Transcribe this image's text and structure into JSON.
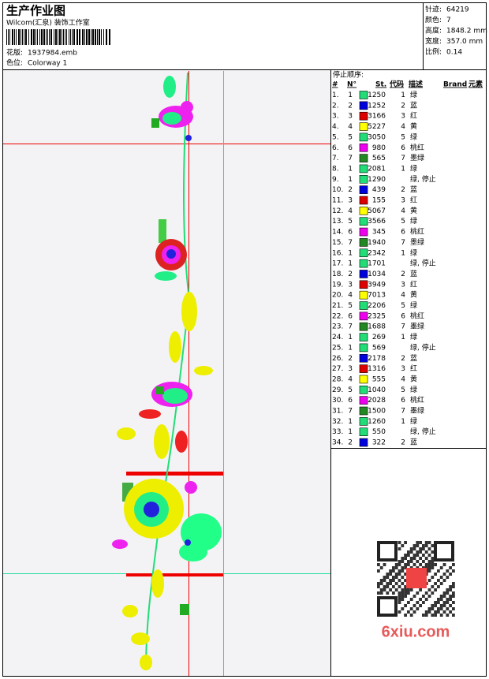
{
  "header": {
    "title": "生产作业图",
    "studio": "Wilcom(汇泉) 装饰工作室",
    "design_label": "花版:",
    "design_file": "1937984.emb",
    "colorway_label": "色位:",
    "colorway": "Colorway 1"
  },
  "info": [
    {
      "label": "针迹:",
      "value": "64219"
    },
    {
      "label": "颜色:",
      "value": "7"
    },
    {
      "label": "高度:",
      "value": "1848.2 mm"
    },
    {
      "label": "宽度:",
      "value": "357.0 mm"
    },
    {
      "label": "比例:",
      "value": "0.14"
    }
  ],
  "stop_sequence": {
    "title": "停止顺序:",
    "columns": [
      "#",
      "N°",
      "St.",
      "代码",
      "描述",
      "Brand",
      "元素"
    ],
    "rows": [
      {
        "number": "1.",
        "needle": "1",
        "stitches": "1250",
        "code": "1",
        "description": "绿",
        "color": "#22dd77"
      },
      {
        "number": "2.",
        "needle": "2",
        "stitches": "1252",
        "code": "2",
        "description": "蓝",
        "color": "#0000dd"
      },
      {
        "number": "3.",
        "needle": "3",
        "stitches": "3166",
        "code": "3",
        "description": "红",
        "color": "#dd0000"
      },
      {
        "number": "4.",
        "needle": "4",
        "stitches": "5227",
        "code": "4",
        "description": "黄",
        "color": "#ffff00"
      },
      {
        "number": "5.",
        "needle": "5",
        "stitches": "3050",
        "code": "5",
        "description": "绿",
        "color": "#22dd77"
      },
      {
        "number": "6.",
        "needle": "6",
        "stitches": "980",
        "code": "6",
        "description": "桃红",
        "color": "#ee00ee"
      },
      {
        "number": "7.",
        "needle": "7",
        "stitches": "565",
        "code": "7",
        "description": "墨绿",
        "color": "#228822"
      },
      {
        "number": "8.",
        "needle": "1",
        "stitches": "2081",
        "code": "1",
        "description": "绿",
        "color": "#22dd77"
      },
      {
        "number": "9.",
        "needle": "1",
        "stitches": "1290",
        "description": "绿, 停止",
        "color": "#22dd77"
      },
      {
        "number": "10.",
        "needle": "2",
        "stitches": "439",
        "code": "2",
        "description": "蓝",
        "color": "#0000dd"
      },
      {
        "number": "11.",
        "needle": "3",
        "stitches": "155",
        "code": "3",
        "description": "红",
        "color": "#dd0000"
      },
      {
        "number": "12.",
        "needle": "4",
        "stitches": "5067",
        "code": "4",
        "description": "黄",
        "color": "#ffff00"
      },
      {
        "number": "13.",
        "needle": "5",
        "stitches": "3566",
        "code": "5",
        "description": "绿",
        "color": "#22dd77"
      },
      {
        "number": "14.",
        "needle": "6",
        "stitches": "345",
        "code": "6",
        "description": "桃红",
        "color": "#ee00ee"
      },
      {
        "number": "15.",
        "needle": "7",
        "stitches": "1940",
        "code": "7",
        "description": "墨绿",
        "color": "#228822"
      },
      {
        "number": "16.",
        "needle": "1",
        "stitches": "2342",
        "code": "1",
        "description": "绿",
        "color": "#22dd77"
      },
      {
        "number": "17.",
        "needle": "1",
        "stitches": "1701",
        "description": "绿, 停止",
        "color": "#22dd77"
      },
      {
        "number": "18.",
        "needle": "2",
        "stitches": "1034",
        "code": "2",
        "description": "蓝",
        "color": "#0000dd"
      },
      {
        "number": "19.",
        "needle": "3",
        "stitches": "3949",
        "code": "3",
        "description": "红",
        "color": "#dd0000"
      },
      {
        "number": "20.",
        "needle": "4",
        "stitches": "7013",
        "code": "4",
        "description": "黄",
        "color": "#ffff00"
      },
      {
        "number": "21.",
        "needle": "5",
        "stitches": "2206",
        "code": "5",
        "description": "绿",
        "color": "#22dd77"
      },
      {
        "number": "22.",
        "needle": "6",
        "stitches": "2325",
        "code": "6",
        "description": "桃红",
        "color": "#ee00ee"
      },
      {
        "number": "23.",
        "needle": "7",
        "stitches": "1688",
        "code": "7",
        "description": "墨绿",
        "color": "#228822"
      },
      {
        "number": "24.",
        "needle": "1",
        "stitches": "269",
        "code": "1",
        "description": "绿",
        "color": "#22dd77"
      },
      {
        "number": "25.",
        "needle": "1",
        "stitches": "569",
        "description": "绿, 停止",
        "color": "#22dd77"
      },
      {
        "number": "26.",
        "needle": "2",
        "stitches": "2178",
        "code": "2",
        "description": "蓝",
        "color": "#0000dd"
      },
      {
        "number": "27.",
        "needle": "3",
        "stitches": "1316",
        "code": "3",
        "description": "红",
        "color": "#dd0000"
      },
      {
        "number": "28.",
        "needle": "4",
        "stitches": "555",
        "code": "4",
        "description": "黄",
        "color": "#ffff00"
      },
      {
        "number": "29.",
        "needle": "5",
        "stitches": "1040",
        "code": "5",
        "description": "绿",
        "color": "#22dd77"
      },
      {
        "number": "30.",
        "needle": "6",
        "stitches": "2028",
        "code": "6",
        "description": "桃红",
        "color": "#ee00ee"
      },
      {
        "number": "31.",
        "needle": "7",
        "stitches": "1500",
        "code": "7",
        "description": "墨绿",
        "color": "#228822"
      },
      {
        "number": "32.",
        "needle": "1",
        "stitches": "1260",
        "code": "1",
        "description": "绿",
        "color": "#22dd77"
      },
      {
        "number": "33.",
        "needle": "1",
        "stitches": "550",
        "description": "绿, 停止",
        "color": "#22dd77"
      },
      {
        "number": "34.",
        "needle": "2",
        "stitches": "322",
        "code": "2",
        "description": "蓝",
        "color": "#0000dd"
      }
    ]
  },
  "watermark": "6xiu.com"
}
